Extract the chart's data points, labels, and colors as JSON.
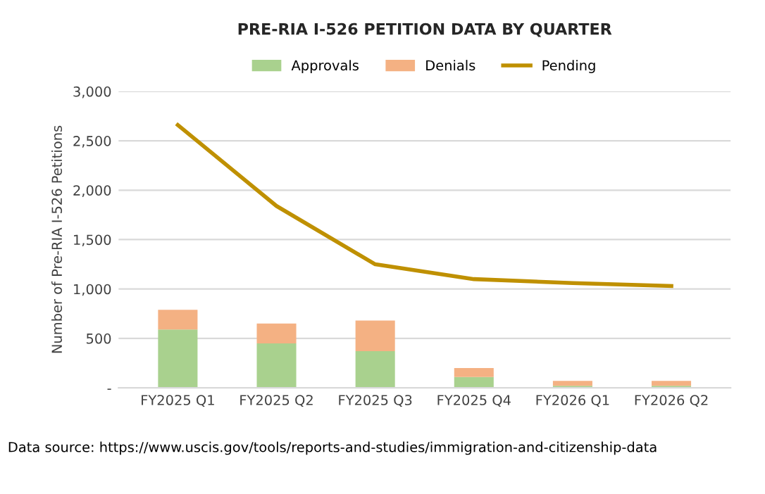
{
  "chart_data": {
    "type": "bar",
    "stacked": true,
    "title": "PRE-RIA I-526 PETITION DATA BY QUARTER",
    "ylabel": "Number of Pre-RIA I-526 Petitions",
    "categories": [
      "FY2025 Q1",
      "FY2025 Q2",
      "FY2025 Q3",
      "FY2025 Q4",
      "FY2026 Q1",
      "FY2026 Q2"
    ],
    "series": [
      {
        "name": "Approvals",
        "color": "#a9d18e",
        "values": [
          590,
          450,
          370,
          110,
          20,
          20
        ]
      },
      {
        "name": "Denials",
        "color": "#f4b183",
        "values": [
          200,
          200,
          310,
          90,
          50,
          50
        ]
      },
      {
        "name": "Pending",
        "type": "line",
        "color": "#bf9000",
        "values": [
          2660,
          1840,
          1250,
          1100,
          1060,
          1030
        ]
      }
    ],
    "ylim": [
      0,
      3000
    ],
    "yticks": [
      {
        "value": 0,
        "label": "-"
      },
      {
        "value": 500,
        "label": "500"
      },
      {
        "value": 1000,
        "label": "1,000"
      },
      {
        "value": 1500,
        "label": "1,500"
      },
      {
        "value": 2000,
        "label": "2,000"
      },
      {
        "value": 2500,
        "label": "2,500"
      },
      {
        "value": 3000,
        "label": "3,000"
      }
    ],
    "grid": "y",
    "legend": "top",
    "marker": "none",
    "line_style": "solid",
    "annotations": [
      "Data source: https://www.uscis.gov/tools/reports-and-studies/immigration-and-citizenship-data"
    ]
  }
}
